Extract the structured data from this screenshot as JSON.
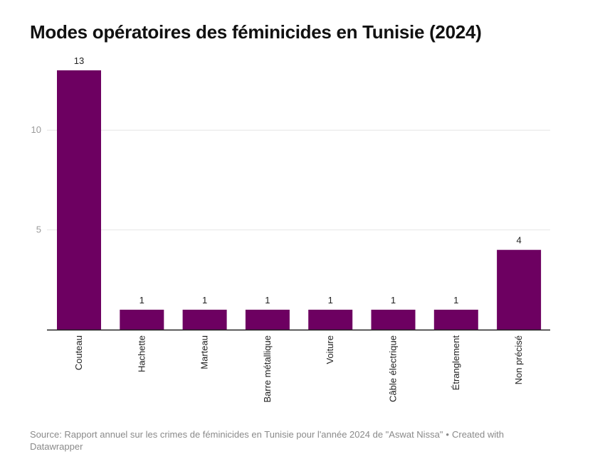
{
  "title": "Modes opératoires des féminicides en Tunisie (2024)",
  "footer": {
    "source": "Source: Rapport annuel sur les crimes de féminicides en Tunisie pour l'année 2024 de \"Aswat Nissa\"",
    "separator": "•",
    "credit": "Created with Datawrapper"
  },
  "colors": {
    "bar": "#6d0061",
    "grid": "#e6e6e6",
    "axis": "#222222"
  },
  "chart_data": {
    "type": "bar",
    "categories": [
      "Couteau",
      "Hachette",
      "Marteau",
      "Barre métallique",
      "Voiture",
      "Câble électrique",
      "Étranglement",
      "Non précisé"
    ],
    "values": [
      13,
      1,
      1,
      1,
      1,
      1,
      1,
      4
    ],
    "ylim": [
      0,
      13
    ],
    "yticks": [
      5,
      10
    ],
    "grid": true,
    "data_labels": true,
    "title": "Modes opératoires des féminicides en Tunisie (2024)",
    "xlabel": "",
    "ylabel": ""
  }
}
